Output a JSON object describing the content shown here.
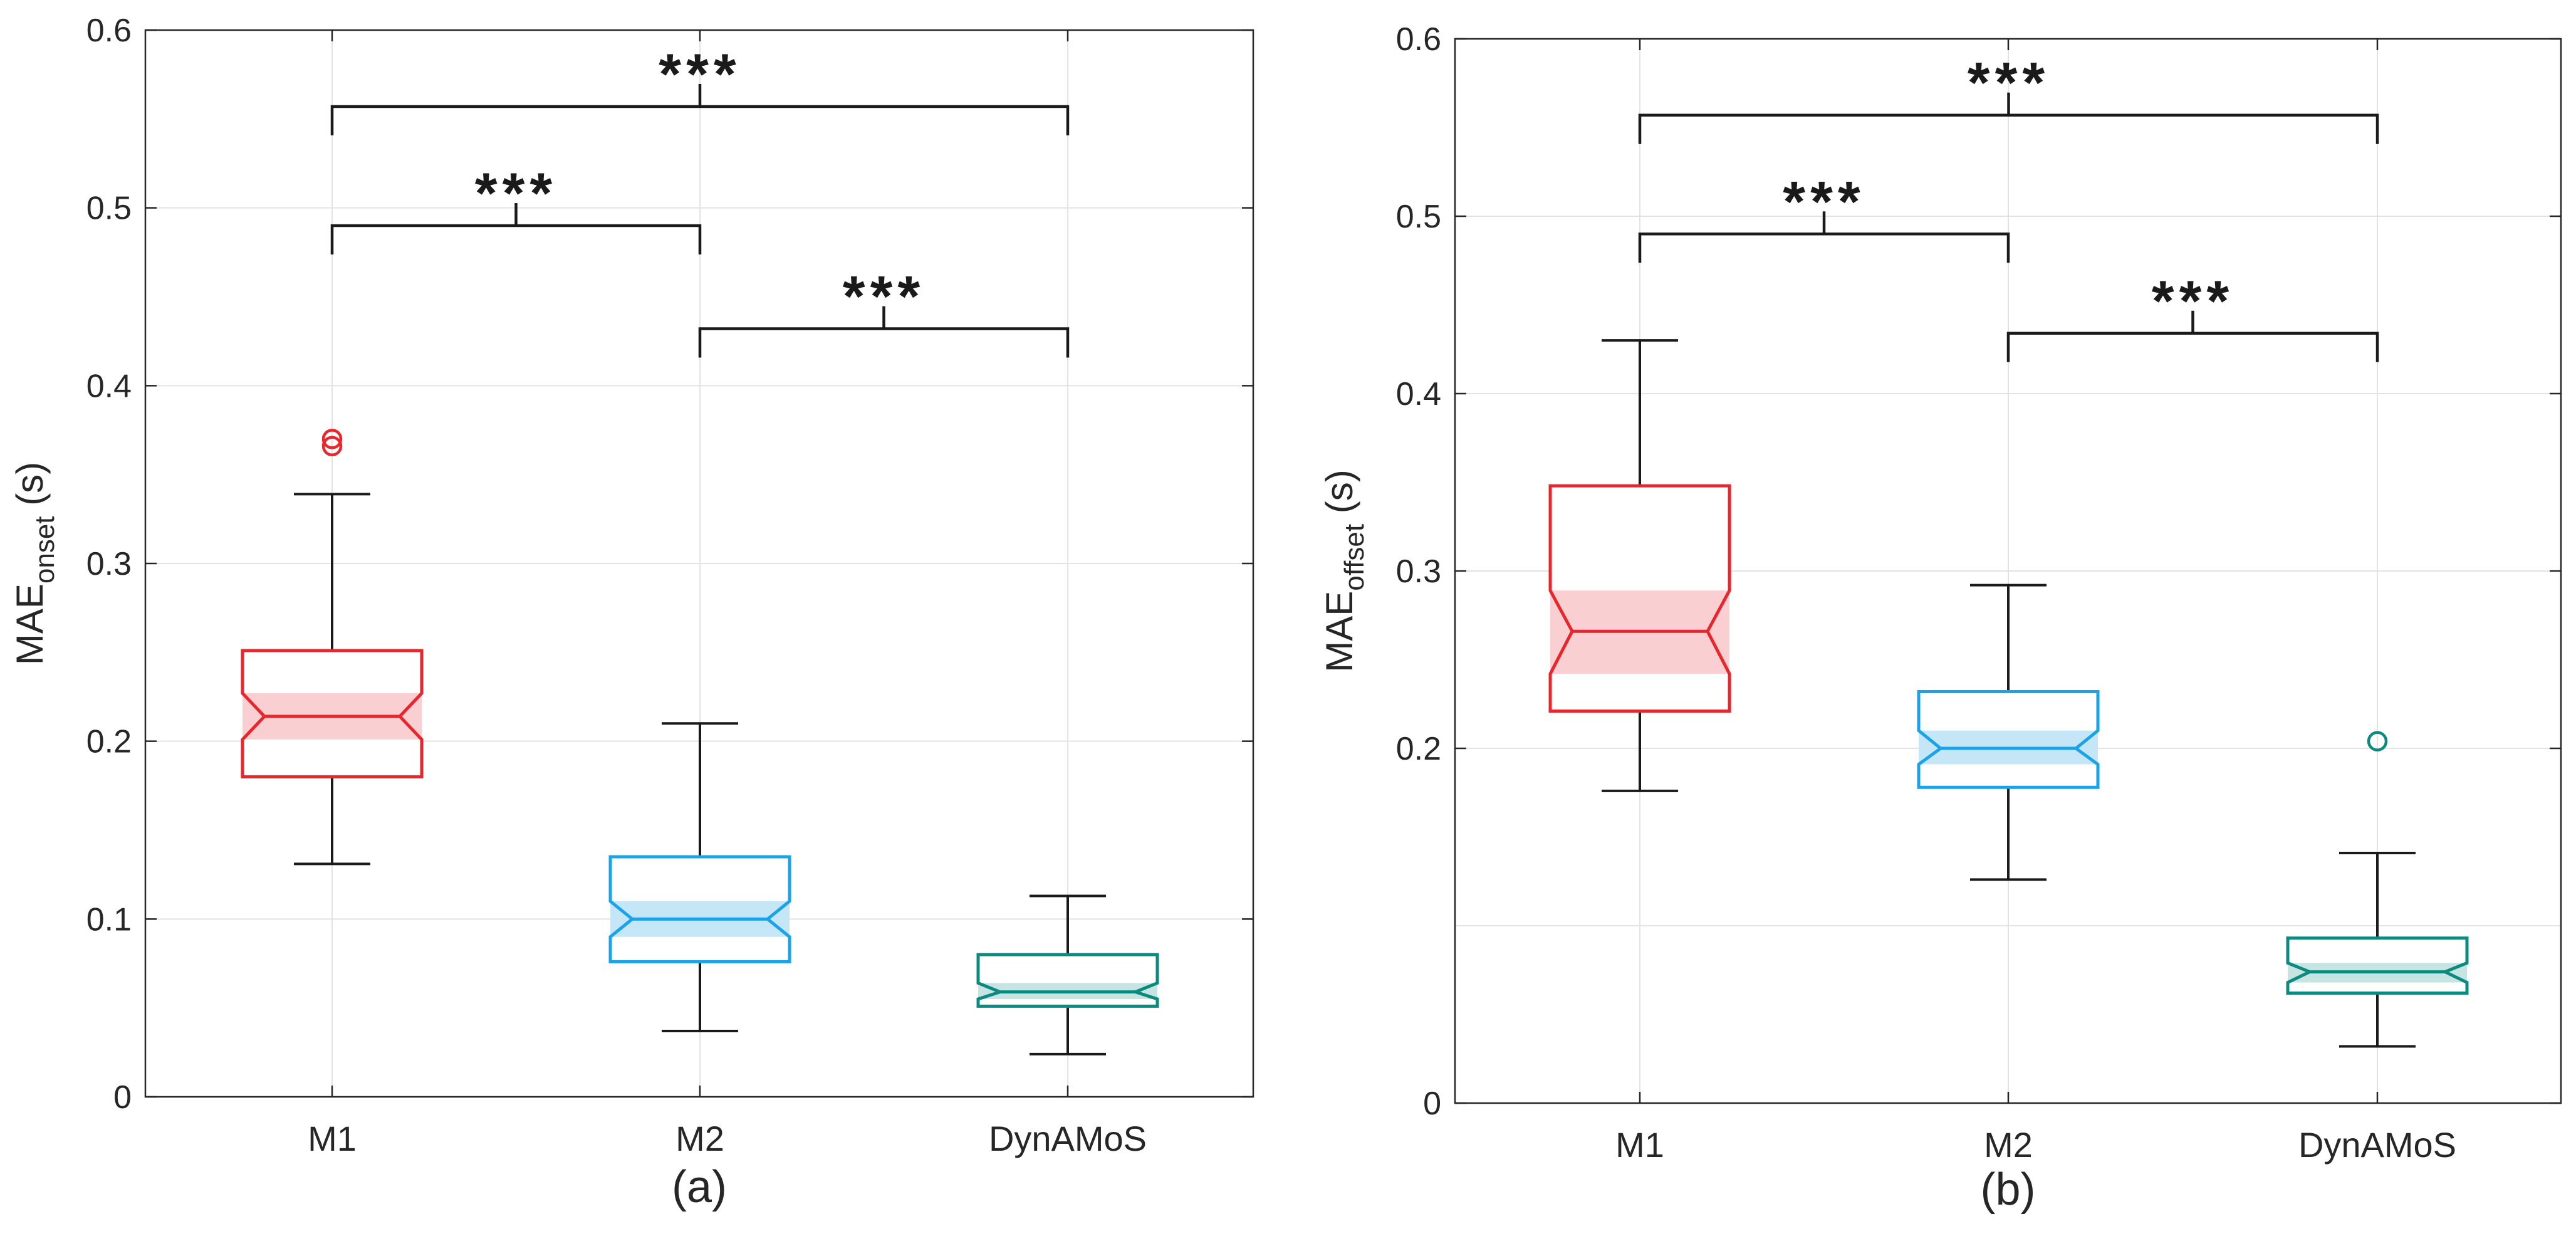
{
  "chart_data": [
    {
      "type": "box",
      "panel_label": "(a)",
      "ylabel_main": "MAE",
      "ylabel_sub": "onset",
      "ylabel_unit": " (s)",
      "ylim": [
        0,
        0.6
      ],
      "yticks": [
        0,
        0.1,
        0.2,
        0.3,
        0.4,
        0.5,
        0.6
      ],
      "ytick_labels": [
        "0",
        "0.1",
        "0.2",
        "0.3",
        "0.4",
        "0.5",
        "0.6"
      ],
      "grid": true,
      "categories": [
        "M1",
        "M2",
        "DynAMoS"
      ],
      "colors": [
        "#e8262c",
        "#1aa3e8",
        "#0b8a80"
      ],
      "fills": [
        "#f9cfd2",
        "#c4e6f6",
        "#c6e4e1"
      ],
      "boxes": [
        {
          "whisker_low": 0.131,
          "q1": 0.18,
          "notch_low": 0.201,
          "median": 0.214,
          "notch_high": 0.227,
          "q3": 0.251,
          "whisker_high": 0.339,
          "outliers": [
            0.366,
            0.37
          ]
        },
        {
          "whisker_low": 0.037,
          "q1": 0.076,
          "notch_low": 0.09,
          "median": 0.1,
          "notch_high": 0.11,
          "q3": 0.135,
          "whisker_high": 0.21,
          "outliers": []
        },
        {
          "whisker_low": 0.024,
          "q1": 0.051,
          "notch_low": 0.055,
          "median": 0.059,
          "notch_high": 0.064,
          "q3": 0.08,
          "whisker_high": 0.113,
          "outliers": []
        }
      ],
      "significance": [
        {
          "from": 0,
          "to": 2,
          "level": 0.557,
          "label": "***"
        },
        {
          "from": 0,
          "to": 1,
          "level": 0.49,
          "label": "***"
        },
        {
          "from": 1,
          "to": 2,
          "level": 0.432,
          "label": "***"
        }
      ]
    },
    {
      "type": "box",
      "panel_label": "(b)",
      "ylabel_main": "MAE",
      "ylabel_sub": "offset",
      "ylabel_unit": " (s)",
      "ylim": [
        0,
        0.6
      ],
      "yticks": [
        0,
        0.2,
        0.3,
        0.4,
        0.5,
        0.6
      ],
      "ytick_labels": [
        "0",
        "0.2",
        "0.3",
        "0.4",
        "0.5",
        "0.6"
      ],
      "grid_values": [
        0.1,
        0.2,
        0.3,
        0.4,
        0.5
      ],
      "grid": true,
      "categories": [
        "M1",
        "M2",
        "DynAMoS"
      ],
      "colors": [
        "#e8262c",
        "#1aa3e8",
        "#0b8a80"
      ],
      "fills": [
        "#f9cfd2",
        "#c4e6f6",
        "#c6e4e1"
      ],
      "boxes": [
        {
          "whisker_low": 0.176,
          "q1": 0.221,
          "notch_low": 0.242,
          "median": 0.266,
          "notch_high": 0.289,
          "q3": 0.348,
          "whisker_high": 0.43,
          "outliers": []
        },
        {
          "whisker_low": 0.126,
          "q1": 0.178,
          "notch_low": 0.191,
          "median": 0.2,
          "notch_high": 0.21,
          "q3": 0.232,
          "whisker_high": 0.292,
          "outliers": []
        },
        {
          "whisker_low": 0.032,
          "q1": 0.062,
          "notch_low": 0.068,
          "median": 0.074,
          "notch_high": 0.079,
          "q3": 0.093,
          "whisker_high": 0.141,
          "outliers": [
            0.204
          ]
        }
      ],
      "significance": [
        {
          "from": 0,
          "to": 2,
          "level": 0.557,
          "label": "***"
        },
        {
          "from": 0,
          "to": 1,
          "level": 0.49,
          "label": "***"
        },
        {
          "from": 1,
          "to": 2,
          "level": 0.434,
          "label": "***"
        }
      ]
    }
  ]
}
